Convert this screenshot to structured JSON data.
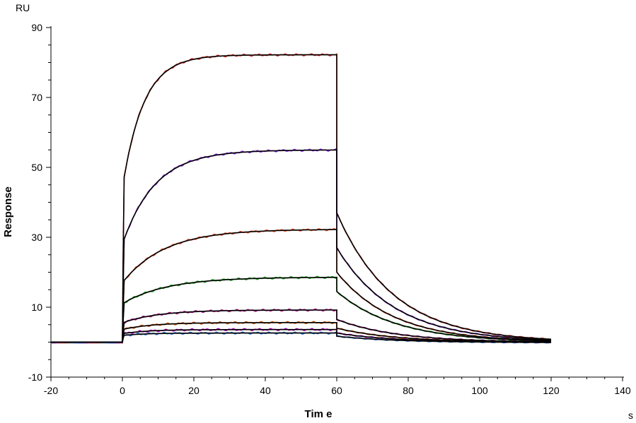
{
  "chart_data": {
    "type": "line",
    "title": "",
    "xlabel": "Tim e",
    "ylabel": "Response",
    "x_unit": "s",
    "y_unit": "RU",
    "xlim": [
      -20,
      140
    ],
    "ylim": [
      -10,
      90
    ],
    "x_ticks": [
      -20,
      0,
      20,
      40,
      60,
      80,
      100,
      120,
      140
    ],
    "y_ticks": [
      -10,
      10,
      30,
      50,
      70,
      90
    ],
    "grid": false,
    "legend": "none",
    "injection": {
      "start": 0,
      "end": 60,
      "dissociation_end": 120,
      "baseline_start": -20
    },
    "series": [
      {
        "measured_color": "#d42a1f",
        "fit_color": "#000000",
        "assoc_plateau": 82.2,
        "assoc_kobs": 0.17,
        "assoc_jump": 44,
        "diss_start": 37,
        "diss_rate": 0.063
      },
      {
        "measured_color": "#8a2be2",
        "fit_color": "#000000",
        "assoc_plateau": 55.0,
        "assoc_kobs": 0.11,
        "assoc_jump": 28,
        "diss_start": 27,
        "diss_rate": 0.062
      },
      {
        "measured_color": "#e8532a",
        "fit_color": "#000000",
        "assoc_plateau": 32.3,
        "assoc_kobs": 0.085,
        "assoc_jump": 17,
        "diss_start": 20,
        "diss_rate": 0.063
      },
      {
        "measured_color": "#1fa31f",
        "fit_color": "#000000",
        "assoc_plateau": 18.6,
        "assoc_kobs": 0.08,
        "assoc_jump": 11,
        "diss_start": 14.5,
        "diss_rate": 0.06
      },
      {
        "measured_color": "#b0148c",
        "fit_color": "#000000",
        "assoc_plateau": 9.2,
        "assoc_kobs": 0.1,
        "assoc_jump": 5.5,
        "diss_start": 6.5,
        "diss_rate": 0.06
      },
      {
        "measured_color": "#cc5500",
        "fit_color": "#000000",
        "assoc_plateau": 5.6,
        "assoc_kobs": 0.12,
        "assoc_jump": 3.6,
        "diss_start": 4.0,
        "diss_rate": 0.06
      },
      {
        "measured_color": "#b000b0",
        "fit_color": "#000000",
        "assoc_plateau": 3.6,
        "assoc_kobs": 0.14,
        "assoc_jump": 2.4,
        "diss_start": 2.6,
        "diss_rate": 0.06
      },
      {
        "measured_color": "#2a6fd4",
        "fit_color": "#000000",
        "assoc_plateau": 2.6,
        "assoc_kobs": 0.16,
        "assoc_jump": 1.9,
        "diss_start": 1.7,
        "diss_rate": 0.06
      }
    ]
  }
}
